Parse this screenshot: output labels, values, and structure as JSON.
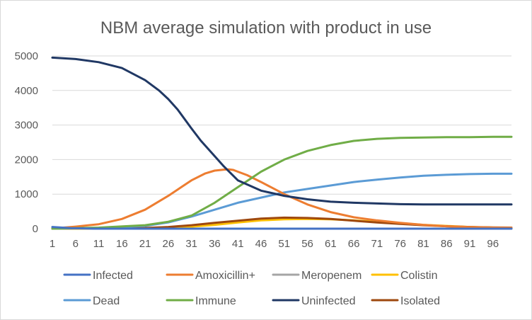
{
  "chart_data": {
    "type": "line",
    "title": "NBM average simulation with product in use",
    "xlabel": "",
    "ylabel": "",
    "ylim": [
      0,
      5000
    ],
    "yticks": [
      0,
      1000,
      2000,
      3000,
      4000,
      5000
    ],
    "xtick_labels": [
      "1",
      "6",
      "11",
      "16",
      "21",
      "26",
      "31",
      "36",
      "41",
      "46",
      "51",
      "56",
      "61",
      "66",
      "71",
      "76",
      "81",
      "86",
      "91",
      "96"
    ],
    "x_range": [
      1,
      100
    ],
    "grid": "horizontal",
    "legend_position": "bottom",
    "series": [
      {
        "name": "Infected",
        "color": "#4472C4",
        "x": [
          1,
          5,
          10,
          100
        ],
        "values": [
          50,
          15,
          0,
          0
        ]
      },
      {
        "name": "Amoxicillin+",
        "color": "#ED7D31",
        "x": [
          1,
          6,
          11,
          16,
          21,
          26,
          31,
          34,
          36,
          38,
          39,
          40,
          41,
          43,
          46,
          51,
          56,
          61,
          66,
          71,
          76,
          81,
          86,
          91,
          96,
          100
        ],
        "values": [
          5,
          60,
          130,
          280,
          550,
          950,
          1400,
          1600,
          1680,
          1710,
          1715,
          1700,
          1650,
          1550,
          1350,
          1000,
          700,
          480,
          330,
          240,
          170,
          110,
          70,
          45,
          30,
          25
        ]
      },
      {
        "name": "Meropenem",
        "color": "#A5A5A5",
        "x": [
          1,
          100
        ],
        "values": [
          0,
          0
        ]
      },
      {
        "name": "Colistin",
        "color": "#FFC000",
        "x": [
          1,
          21,
          26,
          31,
          36,
          41,
          46,
          51,
          56,
          61,
          66,
          71,
          76,
          81,
          86,
          91,
          96,
          100
        ],
        "values": [
          0,
          5,
          30,
          60,
          110,
          180,
          240,
          270,
          280,
          270,
          240,
          200,
          160,
          110,
          80,
          50,
          30,
          20
        ]
      },
      {
        "name": "Dead",
        "color": "#5B9BD5",
        "x": [
          1,
          11,
          21,
          26,
          31,
          36,
          41,
          46,
          51,
          56,
          61,
          66,
          71,
          76,
          81,
          86,
          91,
          96,
          100
        ],
        "values": [
          0,
          20,
          80,
          180,
          350,
          550,
          750,
          900,
          1050,
          1150,
          1250,
          1350,
          1420,
          1480,
          1530,
          1560,
          1580,
          1590,
          1590
        ]
      },
      {
        "name": "Immune",
        "color": "#70AD47",
        "x": [
          1,
          11,
          21,
          26,
          31,
          36,
          41,
          46,
          51,
          56,
          61,
          66,
          71,
          76,
          81,
          86,
          91,
          96,
          100
        ],
        "values": [
          0,
          30,
          100,
          200,
          380,
          750,
          1200,
          1650,
          2000,
          2250,
          2420,
          2540,
          2600,
          2630,
          2640,
          2650,
          2650,
          2660,
          2660
        ]
      },
      {
        "name": "Uninfected",
        "color": "#203864",
        "x": [
          1,
          6,
          11,
          16,
          21,
          24,
          26,
          28,
          31,
          33,
          36,
          38,
          41,
          46,
          51,
          56,
          61,
          66,
          71,
          76,
          81,
          86,
          91,
          96,
          100
        ],
        "values": [
          4950,
          4910,
          4820,
          4650,
          4300,
          4000,
          3750,
          3450,
          2900,
          2550,
          2100,
          1800,
          1400,
          1100,
          950,
          850,
          780,
          750,
          730,
          710,
          700,
          700,
          700,
          700,
          700
        ]
      },
      {
        "name": "Isolated",
        "color": "#9E480E",
        "x": [
          1,
          21,
          26,
          31,
          36,
          41,
          46,
          51,
          56,
          61,
          66,
          71,
          76,
          81,
          86,
          91,
          96,
          100
        ],
        "values": [
          5,
          20,
          50,
          100,
          170,
          230,
          290,
          320,
          310,
          280,
          230,
          180,
          140,
          100,
          70,
          50,
          35,
          30
        ]
      }
    ]
  }
}
